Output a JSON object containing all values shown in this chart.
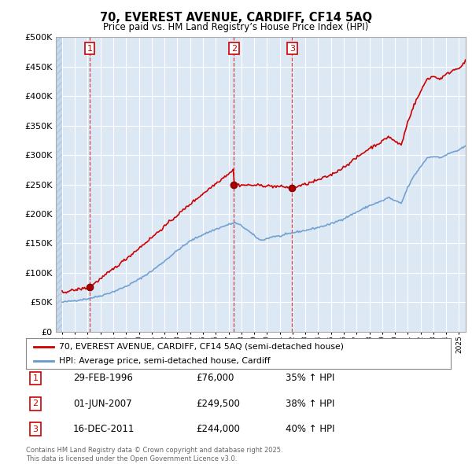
{
  "title": "70, EVEREST AVENUE, CARDIFF, CF14 5AQ",
  "subtitle": "Price paid vs. HM Land Registry’s House Price Index (HPI)",
  "legend_line1": "70, EVEREST AVENUE, CARDIFF, CF14 5AQ (semi-detached house)",
  "legend_line2": "HPI: Average price, semi-detached house, Cardiff",
  "footer": "Contains HM Land Registry data © Crown copyright and database right 2025.\nThis data is licensed under the Open Government Licence v3.0.",
  "table": [
    {
      "num": "1",
      "date": "29-FEB-1996",
      "price": "£76,000",
      "pct": "35% ↑ HPI"
    },
    {
      "num": "2",
      "date": "01-JUN-2007",
      "price": "£249,500",
      "pct": "38% ↑ HPI"
    },
    {
      "num": "3",
      "date": "16-DEC-2011",
      "price": "£244,000",
      "pct": "40% ↑ HPI"
    }
  ],
  "sale_dates": [
    1996.16,
    2007.42,
    2011.96
  ],
  "sale_prices": [
    76000,
    249500,
    244000
  ],
  "hpi_color": "#6699cc",
  "price_color": "#cc0000",
  "bg_plot": "#dde8f5",
  "grid_color": "#ffffff",
  "ylim": [
    0,
    500000
  ],
  "yticks": [
    0,
    50000,
    100000,
    150000,
    200000,
    250000,
    300000,
    350000,
    400000,
    450000,
    500000
  ],
  "xlim_start": 1993.5,
  "xlim_end": 2025.5
}
